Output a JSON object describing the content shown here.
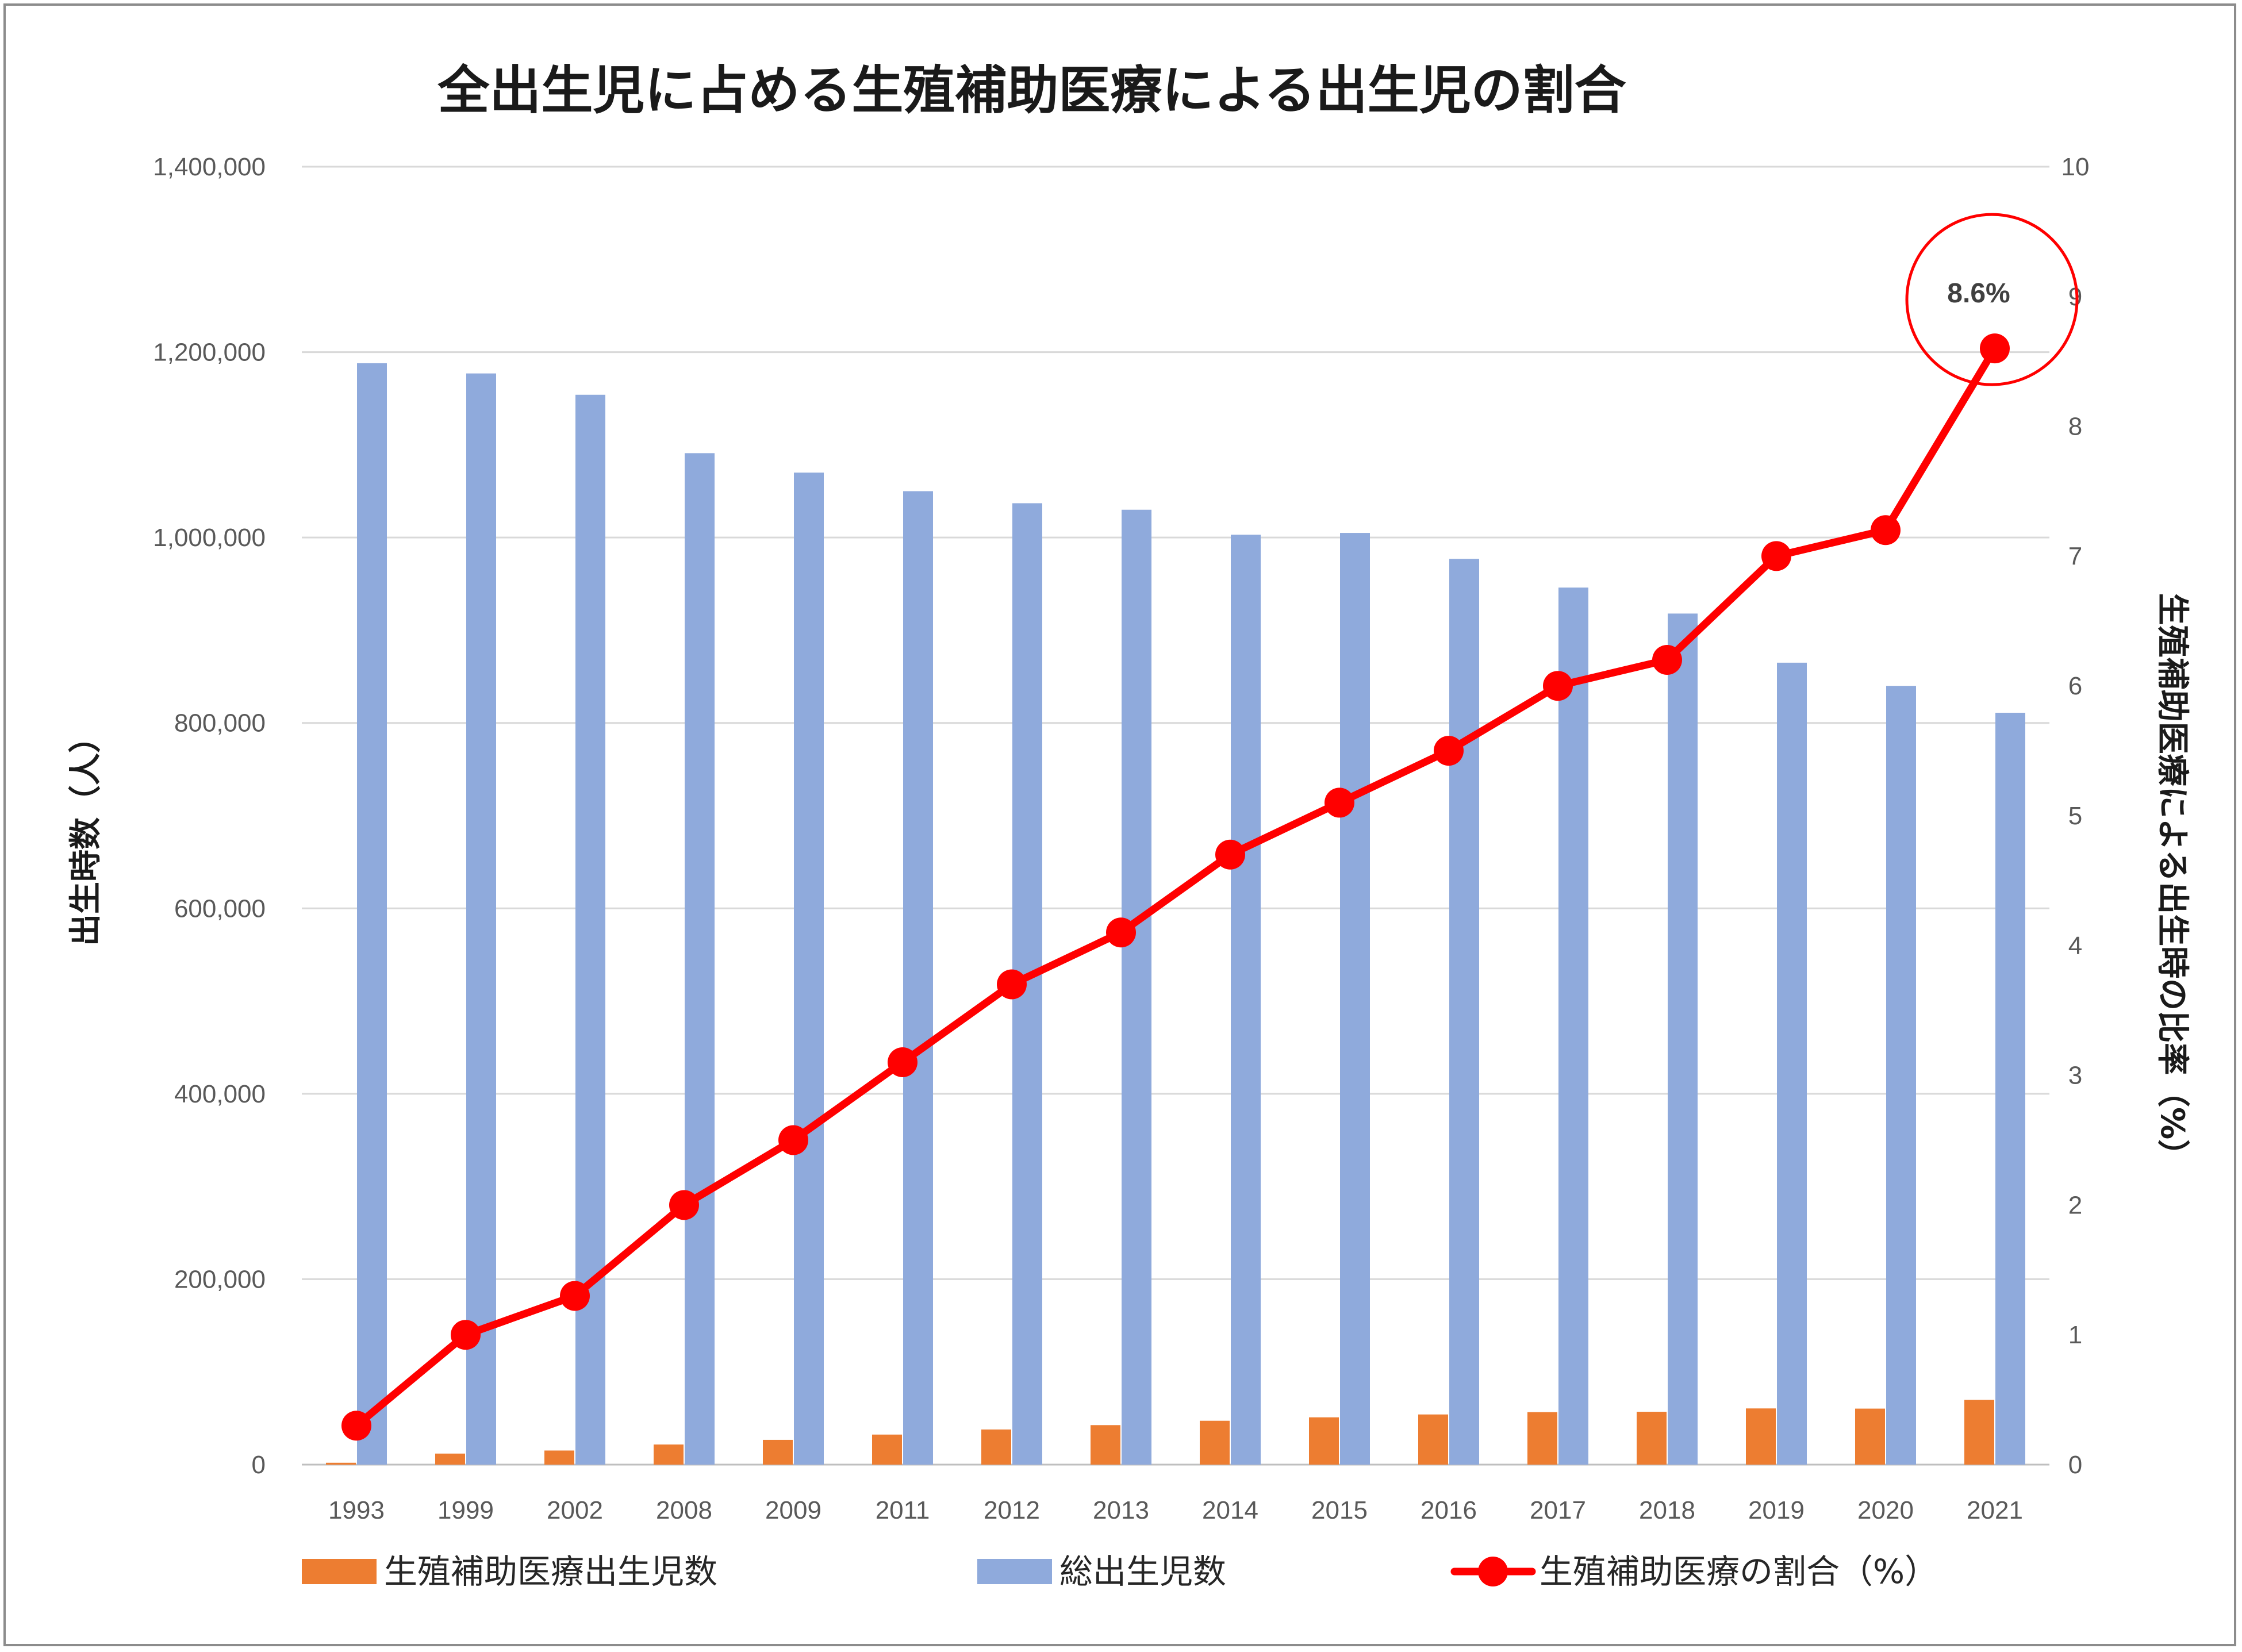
{
  "chart_data": {
    "type": "bar",
    "title": "全出生児に占める生殖補助医療による出生児の割合",
    "categories": [
      "1993",
      "1999",
      "2002",
      "2008",
      "2009",
      "2011",
      "2012",
      "2013",
      "2014",
      "2015",
      "2016",
      "2017",
      "2018",
      "2019",
      "2020",
      "2021"
    ],
    "series": [
      {
        "name": "生殖補助医療出生児数",
        "type": "bar",
        "axis": "left",
        "color": "#ed7d31",
        "values": [
          2000,
          11900,
          15200,
          21700,
          26700,
          32400,
          37900,
          42600,
          47300,
          51000,
          54100,
          56600,
          57000,
          60600,
          60400,
          69800
        ]
      },
      {
        "name": "総出生児数",
        "type": "bar",
        "axis": "left",
        "color": "#8faadc",
        "values": [
          1188000,
          1177000,
          1154000,
          1091000,
          1070000,
          1050000,
          1037000,
          1030000,
          1003000,
          1005000,
          977000,
          946000,
          918000,
          865000,
          840000,
          811000
        ]
      },
      {
        "name": "生殖補助医療の割合（%）",
        "type": "line",
        "axis": "right",
        "color": "#ff0000",
        "values": [
          0.3,
          1.0,
          1.3,
          2.0,
          2.5,
          3.1,
          3.7,
          4.1,
          4.7,
          5.1,
          5.5,
          6.0,
          6.2,
          7.0,
          7.2,
          8.6
        ]
      }
    ],
    "y_left": {
      "label": "出生時数（人）",
      "ylim": [
        0,
        1400000
      ],
      "ticks": [
        "0",
        "200,000",
        "400,000",
        "600,000",
        "800,000",
        "1,000,000",
        "1,200,000",
        "1,400,000"
      ]
    },
    "y_right": {
      "label": "生殖補助医療による出生時の比率（%）",
      "ylim": [
        0,
        10
      ],
      "ticks": [
        "0",
        "1",
        "2",
        "3",
        "4",
        "5",
        "6",
        "7",
        "8",
        "9",
        "10"
      ]
    },
    "annotation": {
      "text": "8.6%",
      "category": "2021"
    },
    "legend_position": "bottom",
    "grid": true
  }
}
